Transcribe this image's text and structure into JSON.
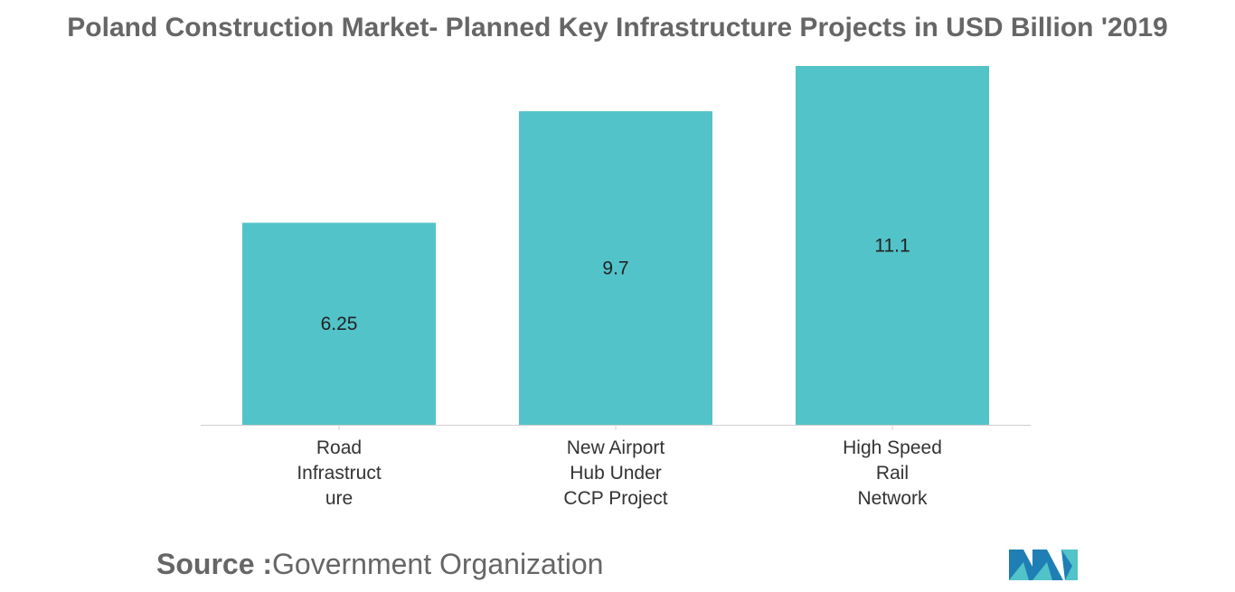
{
  "chart_data": {
    "type": "bar",
    "title": "Poland Construction Market- Planned Key Infrastructure Projects in USD Billion '2019",
    "categories": [
      [
        "Road",
        "Infrastruct",
        "ure"
      ],
      [
        "New Airport",
        "Hub Under",
        "CCP Project"
      ],
      [
        "High Speed",
        "Rail",
        "Network"
      ]
    ],
    "values": [
      6.25,
      9.7,
      11.1
    ],
    "value_labels": [
      "6.25",
      "9.7",
      "11.1"
    ],
    "ylim": [
      0,
      11.1
    ],
    "grid": false,
    "legend": "none",
    "bar_color": "#52c3c9"
  },
  "source": {
    "label": "Source :",
    "text": "Government Organization"
  },
  "logo": {
    "icon": "mordor-intelligence-logo",
    "colors": [
      "#1f7fb4",
      "#52c3c9"
    ]
  }
}
